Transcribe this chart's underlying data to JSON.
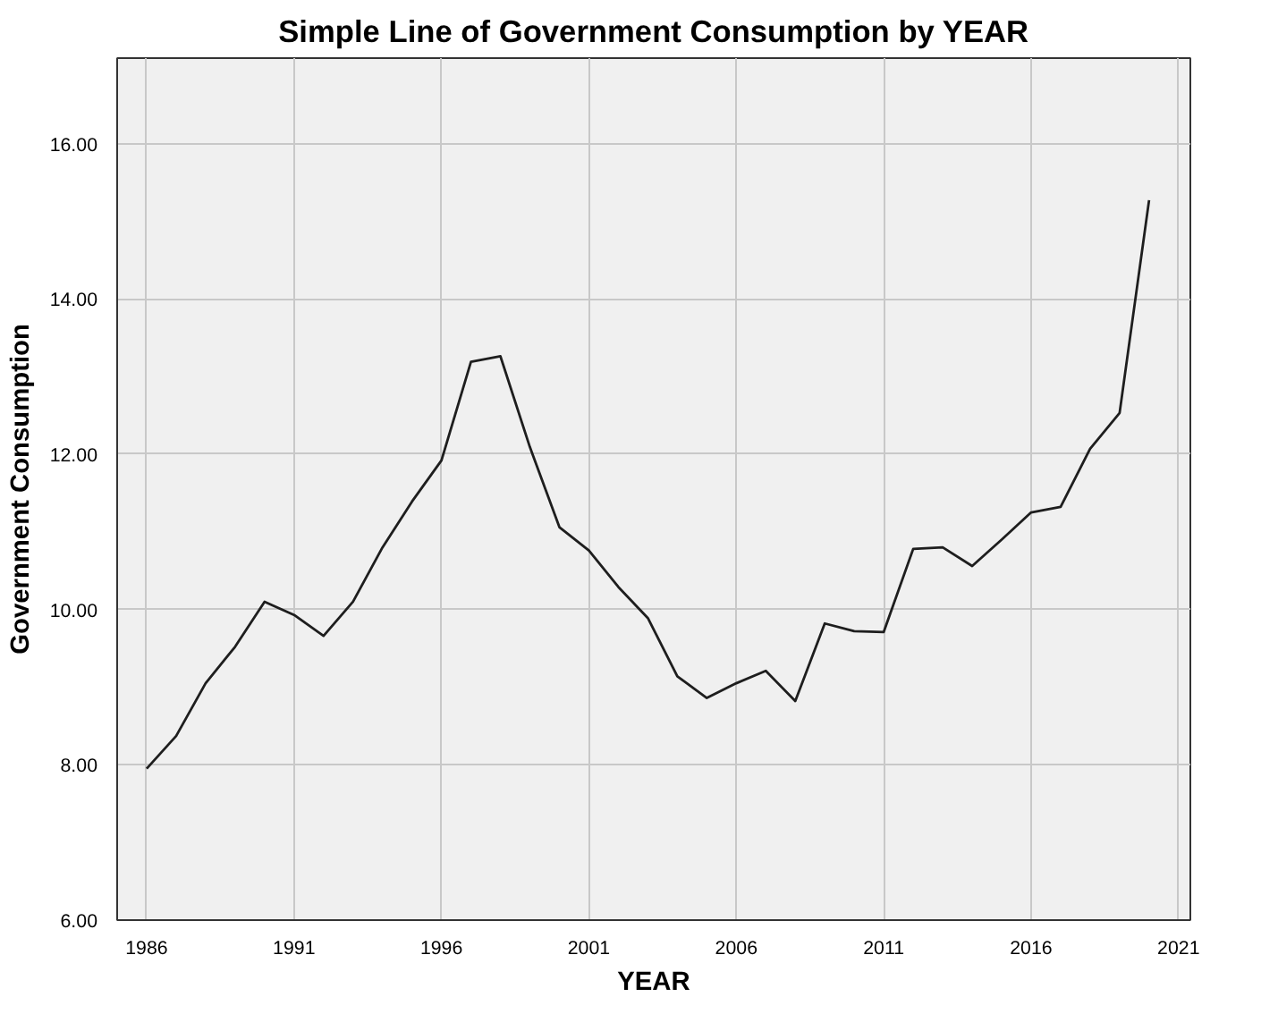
{
  "chart_data": {
    "type": "line",
    "title": "Simple Line of Government Consumption by YEAR",
    "xlabel": "YEAR",
    "ylabel": "Government Consumption",
    "x": [
      1986,
      1987,
      1988,
      1989,
      1990,
      1991,
      1992,
      1993,
      1994,
      1995,
      1996,
      1997,
      1998,
      1999,
      2000,
      2001,
      2002,
      2003,
      2004,
      2005,
      2006,
      2007,
      2008,
      2009,
      2010,
      2011,
      2012,
      2013,
      2014,
      2015,
      2016,
      2017,
      2018,
      2019,
      2020
    ],
    "series": [
      {
        "color": "#1e1e1e",
        "values": [
          7.95,
          8.37,
          9.05,
          9.52,
          10.1,
          9.93,
          9.66,
          10.1,
          10.8,
          11.39,
          11.92,
          13.19,
          13.26,
          12.09,
          11.06,
          10.76,
          10.29,
          9.89,
          9.14,
          8.86,
          9.05,
          9.21,
          8.82,
          9.82,
          9.72,
          9.71,
          10.78,
          10.8,
          10.56,
          10.9,
          11.25,
          11.32,
          12.07,
          12.53,
          15.27
        ]
      }
    ],
    "xlim": [
      1985,
      2021.4
    ],
    "ylim": [
      6,
      17.1
    ],
    "xticks": [
      1986,
      1991,
      1996,
      2001,
      2006,
      2011,
      2016,
      2021
    ],
    "yticks": [
      {
        "value": 6,
        "label": "6.00"
      },
      {
        "value": 8,
        "label": "8.00"
      },
      {
        "value": 10,
        "label": "10.00"
      },
      {
        "value": 12,
        "label": "12.00"
      },
      {
        "value": 14,
        "label": "14.00"
      },
      {
        "value": 16,
        "label": "16.00"
      }
    ],
    "grid": true,
    "marker": "none",
    "line_style": "solid"
  }
}
